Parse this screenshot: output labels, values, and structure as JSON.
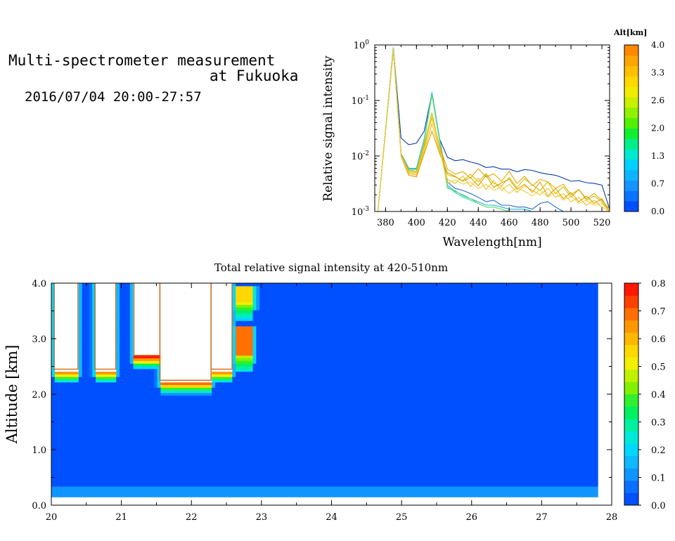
{
  "header": {
    "title_line1": "Multi-spectrometer measurement",
    "title_line2": "at Fukuoka",
    "date_range": "2016/07/04 20:00-27:57"
  },
  "chart_data": [
    {
      "type": "line",
      "xlabel": "Wavelength[nm]",
      "ylabel": "Relative signal intensity",
      "xlim": [
        373,
        525
      ],
      "ylim": [
        0.001,
        1
      ],
      "yscale": "log",
      "x_ticks": [
        "380",
        "400",
        "420",
        "440",
        "460",
        "480",
        "500",
        "520"
      ],
      "y_ticks": [
        "10^-3",
        "10^-2",
        "10^-1",
        "10^0"
      ],
      "colorbar": {
        "label": "Alt[km]",
        "ticks": [
          "0.0",
          "0.7",
          "1.3",
          "2.0",
          "2.6",
          "3.3",
          "4.0"
        ],
        "colors": [
          "#0050ff",
          "#0a74ff",
          "#1494ff",
          "#0fb4ff",
          "#00d0ff",
          "#00e8d0",
          "#00ee88",
          "#10ee30",
          "#50f000",
          "#90f000",
          "#c8f000",
          "#f0ec00",
          "#ffd800",
          "#ffc000",
          "#ffa400",
          "#ff8800"
        ]
      },
      "x": [
        375,
        385,
        390,
        395,
        400,
        405,
        410,
        415,
        420,
        425,
        430,
        435,
        440,
        445,
        450,
        455,
        460,
        465,
        470,
        475,
        480,
        485,
        490,
        495,
        500,
        505,
        510,
        515,
        520,
        525
      ],
      "series": [
        {
          "altitude_km": 0.2,
          "color": "#0a3ca8",
          "values": [
            0.001,
            0.88,
            0.021,
            0.016,
            0.017,
            0.028,
            0.135,
            0.02,
            0.0095,
            0.0082,
            0.0086,
            0.0078,
            0.0072,
            0.0062,
            0.0064,
            0.0058,
            0.0058,
            0.0052,
            0.0057,
            0.0055,
            0.005,
            0.0047,
            0.0045,
            0.004,
            0.0035,
            0.0036,
            0.0033,
            0.0032,
            0.003,
            0.0011
          ]
        },
        {
          "altitude_km": 0.5,
          "color": "#1c6cc8",
          "values": [
            0.001,
            0.9,
            0.011,
            0.006,
            0.006,
            0.02,
            0.14,
            0.02,
            0.0034,
            0.0026,
            0.0024,
            0.0021,
            0.0018,
            0.0015,
            0.0016,
            0.0013,
            0.0013,
            0.0012,
            0.0012,
            0.0011,
            0.0014,
            0.0015,
            0.0012,
            0.001,
            0.001,
            0.001,
            0.001,
            0.001,
            0.001,
            0.001
          ]
        },
        {
          "altitude_km": 0.9,
          "color": "#20b0d8",
          "values": [
            0.001,
            0.9,
            0.011,
            0.006,
            0.006,
            0.02,
            0.14,
            0.02,
            0.003,
            0.0023,
            0.002,
            0.0017,
            0.0015,
            0.0013,
            0.0013,
            0.0012,
            0.0011,
            0.0011,
            0.0011,
            0.001,
            0.001,
            0.001,
            0.001,
            0.001,
            0.001,
            0.001,
            0.001,
            0.001,
            0.001,
            0.001
          ]
        },
        {
          "altitude_km": 1.2,
          "color": "#30d8c0",
          "values": [
            0.001,
            0.9,
            0.0105,
            0.0058,
            0.0058,
            0.019,
            0.135,
            0.019,
            0.0028,
            0.0022,
            0.0018,
            0.0016,
            0.0014,
            0.0012,
            0.0012,
            0.0011,
            0.001,
            0.001,
            0.001,
            0.001,
            0.001,
            0.001,
            0.001,
            0.001,
            0.001,
            0.001,
            0.001,
            0.001,
            0.001,
            0.001
          ]
        },
        {
          "altitude_km": 1.6,
          "color": "#78e060",
          "values": [
            0.001,
            0.88,
            0.0105,
            0.0056,
            0.0056,
            0.018,
            0.12,
            0.018,
            0.0026,
            0.0024,
            0.0019,
            0.0017,
            0.0014,
            0.0012,
            0.0012,
            0.0011,
            0.001,
            0.001,
            0.001,
            0.001,
            0.001,
            0.001,
            0.001,
            0.001,
            0.001,
            0.001,
            0.001,
            0.001,
            0.001,
            0.001
          ]
        },
        {
          "altitude_km": 2.4,
          "color": "#c8c000",
          "values": [
            0.001,
            0.82,
            0.0105,
            0.0052,
            0.005,
            0.016,
            0.06,
            0.014,
            0.0046,
            0.0042,
            0.0036,
            0.0047,
            0.0034,
            0.0048,
            0.0032,
            0.0029,
            0.0041,
            0.0027,
            0.0039,
            0.003,
            0.0024,
            0.0034,
            0.0021,
            0.0028,
            0.0018,
            0.0025,
            0.0016,
            0.0019,
            0.0015,
            0.001
          ]
        },
        {
          "altitude_km": 2.8,
          "color": "#e8a800",
          "values": [
            0.001,
            0.78,
            0.0105,
            0.0055,
            0.0052,
            0.015,
            0.048,
            0.015,
            0.0058,
            0.0047,
            0.0052,
            0.004,
            0.0059,
            0.0042,
            0.0048,
            0.0035,
            0.0053,
            0.0032,
            0.0043,
            0.0029,
            0.0038,
            0.0034,
            0.0026,
            0.0031,
            0.002,
            0.0025,
            0.0017,
            0.0021,
            0.0016,
            0.0011
          ]
        },
        {
          "altitude_km": 3.0,
          "color": "#f0c020",
          "values": [
            0.001,
            0.8,
            0.01,
            0.0048,
            0.0045,
            0.012,
            0.038,
            0.012,
            0.0038,
            0.0032,
            0.0044,
            0.0028,
            0.004,
            0.0025,
            0.0036,
            0.0024,
            0.0031,
            0.0022,
            0.0029,
            0.0024,
            0.002,
            0.0026,
            0.0018,
            0.0021,
            0.0015,
            0.0018,
            0.0013,
            0.0016,
            0.0012,
            0.001
          ]
        },
        {
          "altitude_km": 3.4,
          "color": "#e0a000",
          "values": [
            0.001,
            0.78,
            0.0098,
            0.0045,
            0.0042,
            0.011,
            0.028,
            0.011,
            0.005,
            0.0043,
            0.0035,
            0.0041,
            0.0029,
            0.0045,
            0.0027,
            0.0033,
            0.0038,
            0.0025,
            0.0031,
            0.0022,
            0.0034,
            0.0019,
            0.0026,
            0.0017,
            0.0022,
            0.0015,
            0.0019,
            0.0014,
            0.0017,
            0.001
          ]
        },
        {
          "altitude_km": 3.8,
          "color": "#f0d040",
          "values": [
            0.001,
            0.8,
            0.01,
            0.005,
            0.0047,
            0.013,
            0.052,
            0.013,
            0.0032,
            0.0037,
            0.0031,
            0.0034,
            0.0026,
            0.0031,
            0.0024,
            0.0028,
            0.0021,
            0.0027,
            0.0023,
            0.0019,
            0.0025,
            0.0018,
            0.0022,
            0.0016,
            0.0019,
            0.0014,
            0.0016,
            0.0013,
            0.0014,
            0.001
          ]
        }
      ]
    },
    {
      "type": "heatmap",
      "title": "Total relative signal intensity at 420-510nm",
      "ylabel": "Altitude [km]",
      "xlim": [
        20,
        28
      ],
      "ylim": [
        0,
        4
      ],
      "x_ticks": [
        "20",
        "21",
        "22",
        "23",
        "24",
        "25",
        "26",
        "27",
        "28"
      ],
      "y_ticks": [
        "0.0",
        "1.0",
        "2.0",
        "3.0",
        "4.0"
      ],
      "data_time_range": [
        20.0,
        27.8
      ],
      "data_altitude_range": [
        0.15,
        4.0
      ],
      "background_value": 0.02,
      "near_ground_value": 0.09,
      "features": [
        {
          "kind": "saturated_cloud",
          "t_start": 20.04,
          "t_end": 20.38,
          "alt_base": 2.45,
          "alt_top": 4.0,
          "value": ">0.8"
        },
        {
          "kind": "saturated_cloud",
          "t_start": 20.62,
          "t_end": 20.92,
          "alt_base": 2.45,
          "alt_top": 4.0,
          "value": ">0.8"
        },
        {
          "kind": "saturated_cloud",
          "t_start": 21.18,
          "t_end": 21.55,
          "alt_base": 2.7,
          "alt_top": 4.0,
          "value": ">0.8"
        },
        {
          "kind": "saturated_cloud",
          "t_start": 21.55,
          "t_end": 22.28,
          "alt_base": 2.25,
          "alt_top": 4.0,
          "value": ">0.8"
        },
        {
          "kind": "saturated_cloud",
          "t_start": 22.28,
          "t_end": 22.58,
          "alt_base": 2.45,
          "alt_top": 4.0,
          "value": ">0.8"
        },
        {
          "kind": "strong_echo",
          "t_start": 22.62,
          "t_end": 22.88,
          "alt_base": 2.7,
          "alt_top": 3.25,
          "value": 0.7
        },
        {
          "kind": "strong_echo",
          "t_start": 22.62,
          "t_end": 22.9,
          "alt_base": 3.65,
          "alt_top": 3.95,
          "value": 0.55
        }
      ],
      "colorbar": {
        "ticks": [
          "0.0",
          "0.1",
          "0.2",
          "0.3",
          "0.4",
          "0.5",
          "0.6",
          "0.7",
          "0.8"
        ],
        "colors": [
          "#0050ff",
          "#0870ff",
          "#1094ff",
          "#10b8ff",
          "#00d8ff",
          "#00e8d8",
          "#00f0a0",
          "#00f060",
          "#30f030",
          "#80f000",
          "#c0f000",
          "#f0f000",
          "#ffd800",
          "#ffb800",
          "#ff9800",
          "#ff7000",
          "#ff4000",
          "#ff1800"
        ]
      }
    }
  ]
}
